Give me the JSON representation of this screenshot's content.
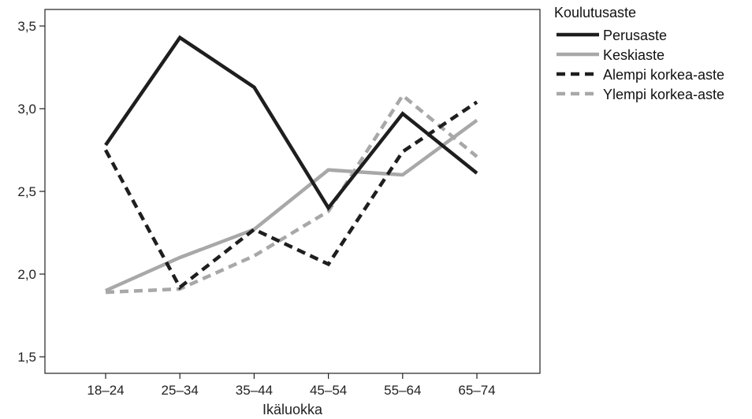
{
  "chart_data": {
    "type": "line",
    "categories": [
      "18–24",
      "25–34",
      "35–44",
      "45–54",
      "55–64",
      "65–74"
    ],
    "xlabel": "Ikäluokka",
    "ylabel": "",
    "ylim": [
      1.4,
      3.6
    ],
    "yticks": [
      "1,5",
      "2,0",
      "2,5",
      "3,0",
      "3,5"
    ],
    "ytick_values": [
      1.5,
      2.0,
      2.5,
      3.0,
      3.5
    ],
    "grid": false,
    "legend_title": "Koulutusaste",
    "legend_position": "right",
    "series": [
      {
        "name": "Perusaste",
        "values": [
          2.78,
          3.43,
          3.13,
          2.4,
          2.97,
          2.61
        ],
        "color": "#1e1e1e",
        "dash": "solid"
      },
      {
        "name": "Keskiaste",
        "values": [
          1.9,
          2.1,
          2.27,
          2.63,
          2.6,
          2.93
        ],
        "color": "#a8a8a8",
        "dash": "solid"
      },
      {
        "name": "Alempi korkea-aste",
        "values": [
          2.75,
          1.92,
          2.27,
          2.06,
          2.74,
          3.04
        ],
        "color": "#1e1e1e",
        "dash": "dashed"
      },
      {
        "name": "Ylempi korkea-aste",
        "values": [
          1.89,
          1.91,
          2.11,
          2.38,
          3.08,
          2.71
        ],
        "color": "#a8a8a8",
        "dash": "dashed"
      }
    ]
  }
}
